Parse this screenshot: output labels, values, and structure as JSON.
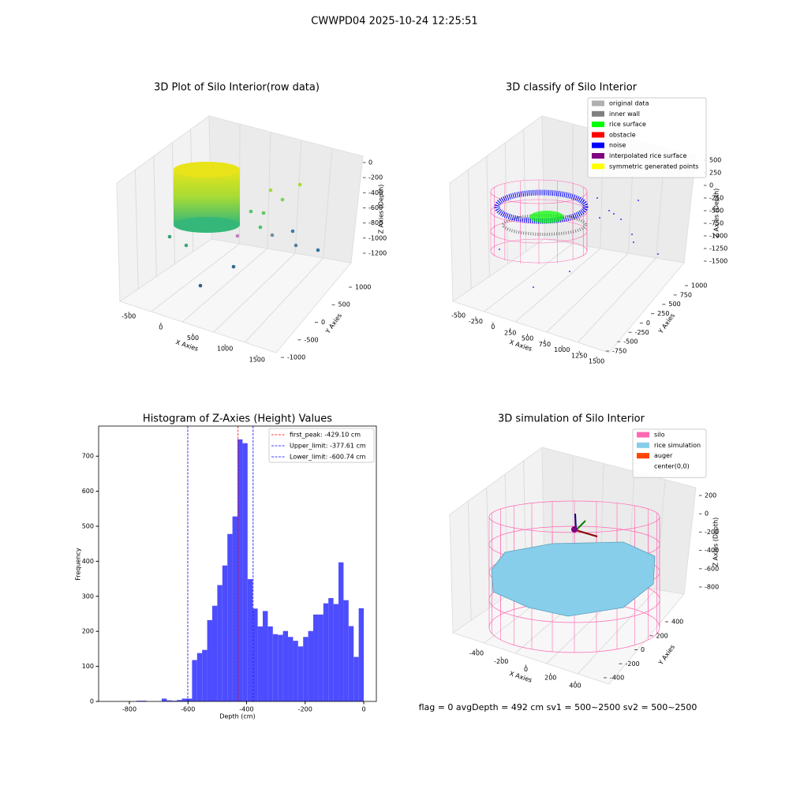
{
  "figure_title": "CWWPD04 2025-10-24 12:25:51",
  "chart_data": [
    {
      "type": "scatter3d",
      "title": "3D Plot of Silo Interior(row data)",
      "xlabel": "X Axies",
      "ylabel": "Y Axies",
      "zlabel": "Z Axies (Depth)",
      "xlim": [
        -650,
        1650
      ],
      "ylim": [
        -1150,
        1150
      ],
      "zlim": [
        -1350,
        100
      ],
      "xticks": [
        -500,
        0,
        500,
        1000,
        1500
      ],
      "yticks": [
        -1000,
        -500,
        0,
        500,
        1000
      ],
      "zticks": [
        0,
        -200,
        -400,
        -600,
        -800,
        -1000,
        -1200
      ],
      "grid": true
    },
    {
      "type": "scatter3d",
      "title": "3D classify of Silo Interior",
      "xlabel": "X Axies",
      "ylabel": "Y Axies",
      "zlabel": "Z Axies (Depth)",
      "xlim": [
        -600,
        1600
      ],
      "ylim": [
        -850,
        1100
      ],
      "zlim": [
        -1600,
        600
      ],
      "xticks": [
        -500,
        -250,
        0,
        250,
        500,
        750,
        1000,
        1250,
        1500
      ],
      "yticks": [
        -750,
        -500,
        -250,
        0,
        250,
        500,
        750,
        1000
      ],
      "zticks": [
        500,
        250,
        0,
        -250,
        -500,
        -750,
        -1000,
        -1250,
        -1500
      ],
      "grid": true,
      "legend": [
        {
          "name": "original data",
          "color": "#b0b0b0"
        },
        {
          "name": "inner wall",
          "color": "#808080"
        },
        {
          "name": "rice surface",
          "color": "#00ff00"
        },
        {
          "name": "obstacle",
          "color": "#ff0000"
        },
        {
          "name": "noise",
          "color": "#0000ff"
        },
        {
          "name": "interpolated rice surface",
          "color": "#800080"
        },
        {
          "name": "symmetric generated points",
          "color": "#ffff00"
        }
      ],
      "legend_loc": "upper right"
    },
    {
      "type": "histogram",
      "title": "Histogram of Z-Axies (Height) Values",
      "xlabel": "Depth (cm)",
      "ylabel": "Frequency",
      "color": "#4d4dff",
      "xlim": [
        -905,
        43
      ],
      "ylim": [
        0,
        786
      ],
      "xticks": [
        -800,
        -600,
        -400,
        -200,
        0
      ],
      "yticks": [
        0,
        100,
        200,
        300,
        400,
        500,
        600,
        700
      ],
      "bins": [
        -862,
        -844.76,
        -827.52,
        -810.28,
        -793.04,
        -775.8,
        -758.56,
        -741.32,
        -724.08,
        -706.84,
        -689.6,
        -672.36,
        -655.12,
        -637.88,
        -620.64,
        -603.4,
        -586.16,
        -568.92,
        -551.68,
        -534.44,
        -517.2,
        -499.96,
        -482.72,
        -465.48,
        -448.24,
        -431,
        -413.76,
        -396.52,
        -379.28,
        -362.04,
        -344.8,
        -327.56,
        -310.32,
        -293.08,
        -275.84,
        -258.6,
        -241.36,
        -224.12,
        -206.88,
        -189.64,
        -172.4,
        -155.16,
        -137.92,
        -120.68,
        -103.44,
        -86.2,
        -68.96,
        -51.72,
        -34.48,
        -17.24,
        0
      ],
      "values": [
        0,
        0,
        0,
        0,
        0,
        2,
        2,
        0,
        0,
        0,
        8,
        3,
        2,
        4,
        8,
        8,
        118,
        138,
        147,
        232,
        273,
        332,
        388,
        478,
        528,
        748,
        737,
        349,
        265,
        214,
        258,
        214,
        192,
        190,
        201,
        184,
        173,
        157,
        184,
        201,
        248,
        248,
        280,
        295,
        278,
        397,
        289,
        215,
        127,
        266
      ],
      "lines": [
        {
          "name": "first_peak: -429.10 cm",
          "value": -429.1,
          "color": "#ff0000"
        },
        {
          "name": "Upper_limit: -377.61 cm",
          "value": -377.61,
          "color": "#0000ff"
        },
        {
          "name": "Lower_limit: -600.74 cm",
          "value": -600.74,
          "color": "#0000ff"
        }
      ],
      "legend_loc": "upper right"
    },
    {
      "type": "surface3d",
      "title": "3D simulation of Silo Interior",
      "xlabel": "X Axies",
      "ylabel": "Y Axies",
      "zlabel": "Z Axies (Depth)",
      "xlim": [
        -480,
        480
      ],
      "ylim": [
        -480,
        480
      ],
      "zlim": [
        -950,
        300
      ],
      "xticks": [
        -400,
        -200,
        0,
        200,
        400
      ],
      "yticks": [
        -400,
        -200,
        0,
        200,
        400
      ],
      "zticks": [
        200,
        0,
        -200,
        -400,
        -600,
        -800
      ],
      "grid": true,
      "legend": [
        {
          "name": "silo",
          "color": "#ff69b4"
        },
        {
          "name": "rice simulation",
          "color": "#87ceeb"
        },
        {
          "name": "auger",
          "color": "#ff4500"
        },
        {
          "name": "center(0,0)",
          "color": "#ffffff"
        }
      ],
      "legend_loc": "upper right",
      "annotation": "flag = 0     avgDepth = 492 cm  sv1 = 500~2500  sv2 = 500~2500"
    }
  ]
}
